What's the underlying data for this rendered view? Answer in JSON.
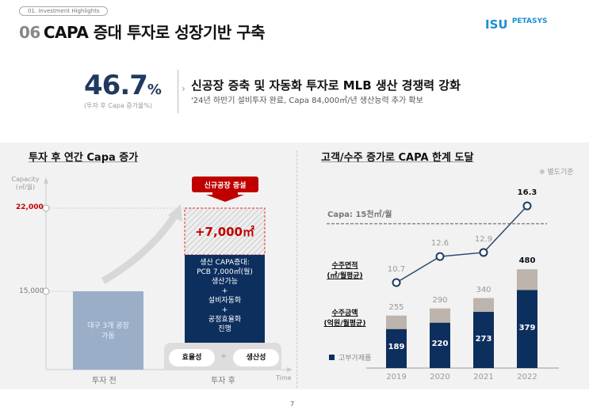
{
  "header": {
    "breadcrumb": "01. Investment Highlights",
    "number": "06",
    "title": "CAPA 증대 투자로 성장기반 구축",
    "logo": "ISU PETASYS",
    "logo_main": "ISU",
    "logo_sub": "PETASYS"
  },
  "highlight": {
    "value": "46.7",
    "unit": "%",
    "caption": "(투자 후 Capa 증가율%)",
    "headline": "신공장 증축 및 자동화 투자로 MLB 생산 경쟁력 강화",
    "subline": "'24년 하반기 설비투자 완료, Capa 84,000㎡/년 생산능력 추가 확보"
  },
  "left": {
    "title": "투자 후 연간 Capa 증가",
    "yaxis_label": "Capacity",
    "yaxis_unit": "(㎡/월)",
    "ticks": [
      "22,000",
      "15,000"
    ],
    "badge": "신규공장 증설",
    "increase": "+7,000㎡",
    "before_bar_text": [
      "대구 3개 공장",
      "가동"
    ],
    "after_bar_text": [
      "생산 CAPA증대:",
      "PCB 7,000㎡(월)",
      "생산가능",
      "+",
      "설비자동화",
      "+",
      "공정효율화",
      "진행"
    ],
    "pill_left": "효율성",
    "pill_plus": "+",
    "pill_right": "생산성",
    "x_before": "투자 전",
    "x_after": "투자 후",
    "x_axis": "Time",
    "values": {
      "before": 15000,
      "after": 22000
    }
  },
  "right": {
    "title": "고객/수주 증가로 CAPA 한계 도달",
    "note": "※ 별도기준",
    "capa_label": "Capa: 15천㎡/월",
    "series1_label": [
      "수주면적",
      "(㎡/월평균)"
    ],
    "series2_label": [
      "수주금액",
      "(억원/월평균)"
    ],
    "legend": "고부가제품",
    "colors": {
      "navy": "#0d2f5e",
      "gray": "#bdb5ad",
      "red": "#c00000"
    }
  },
  "chart_data": {
    "type": "bar",
    "categories": [
      "2019",
      "2020",
      "2021",
      "2022"
    ],
    "series": [
      {
        "name": "수주금액 (억원/월평균)",
        "values": [
          255,
          290,
          340,
          480
        ]
      },
      {
        "name": "고부가제품",
        "values": [
          189,
          220,
          273,
          379
        ]
      },
      {
        "name": "수주면적 (㎡/월평균)",
        "type": "line",
        "values": [
          10.7,
          12.6,
          12.9,
          16.3
        ]
      }
    ],
    "reference_line": {
      "label": "Capa: 15천㎡/월",
      "value": 15
    }
  },
  "page": "7"
}
